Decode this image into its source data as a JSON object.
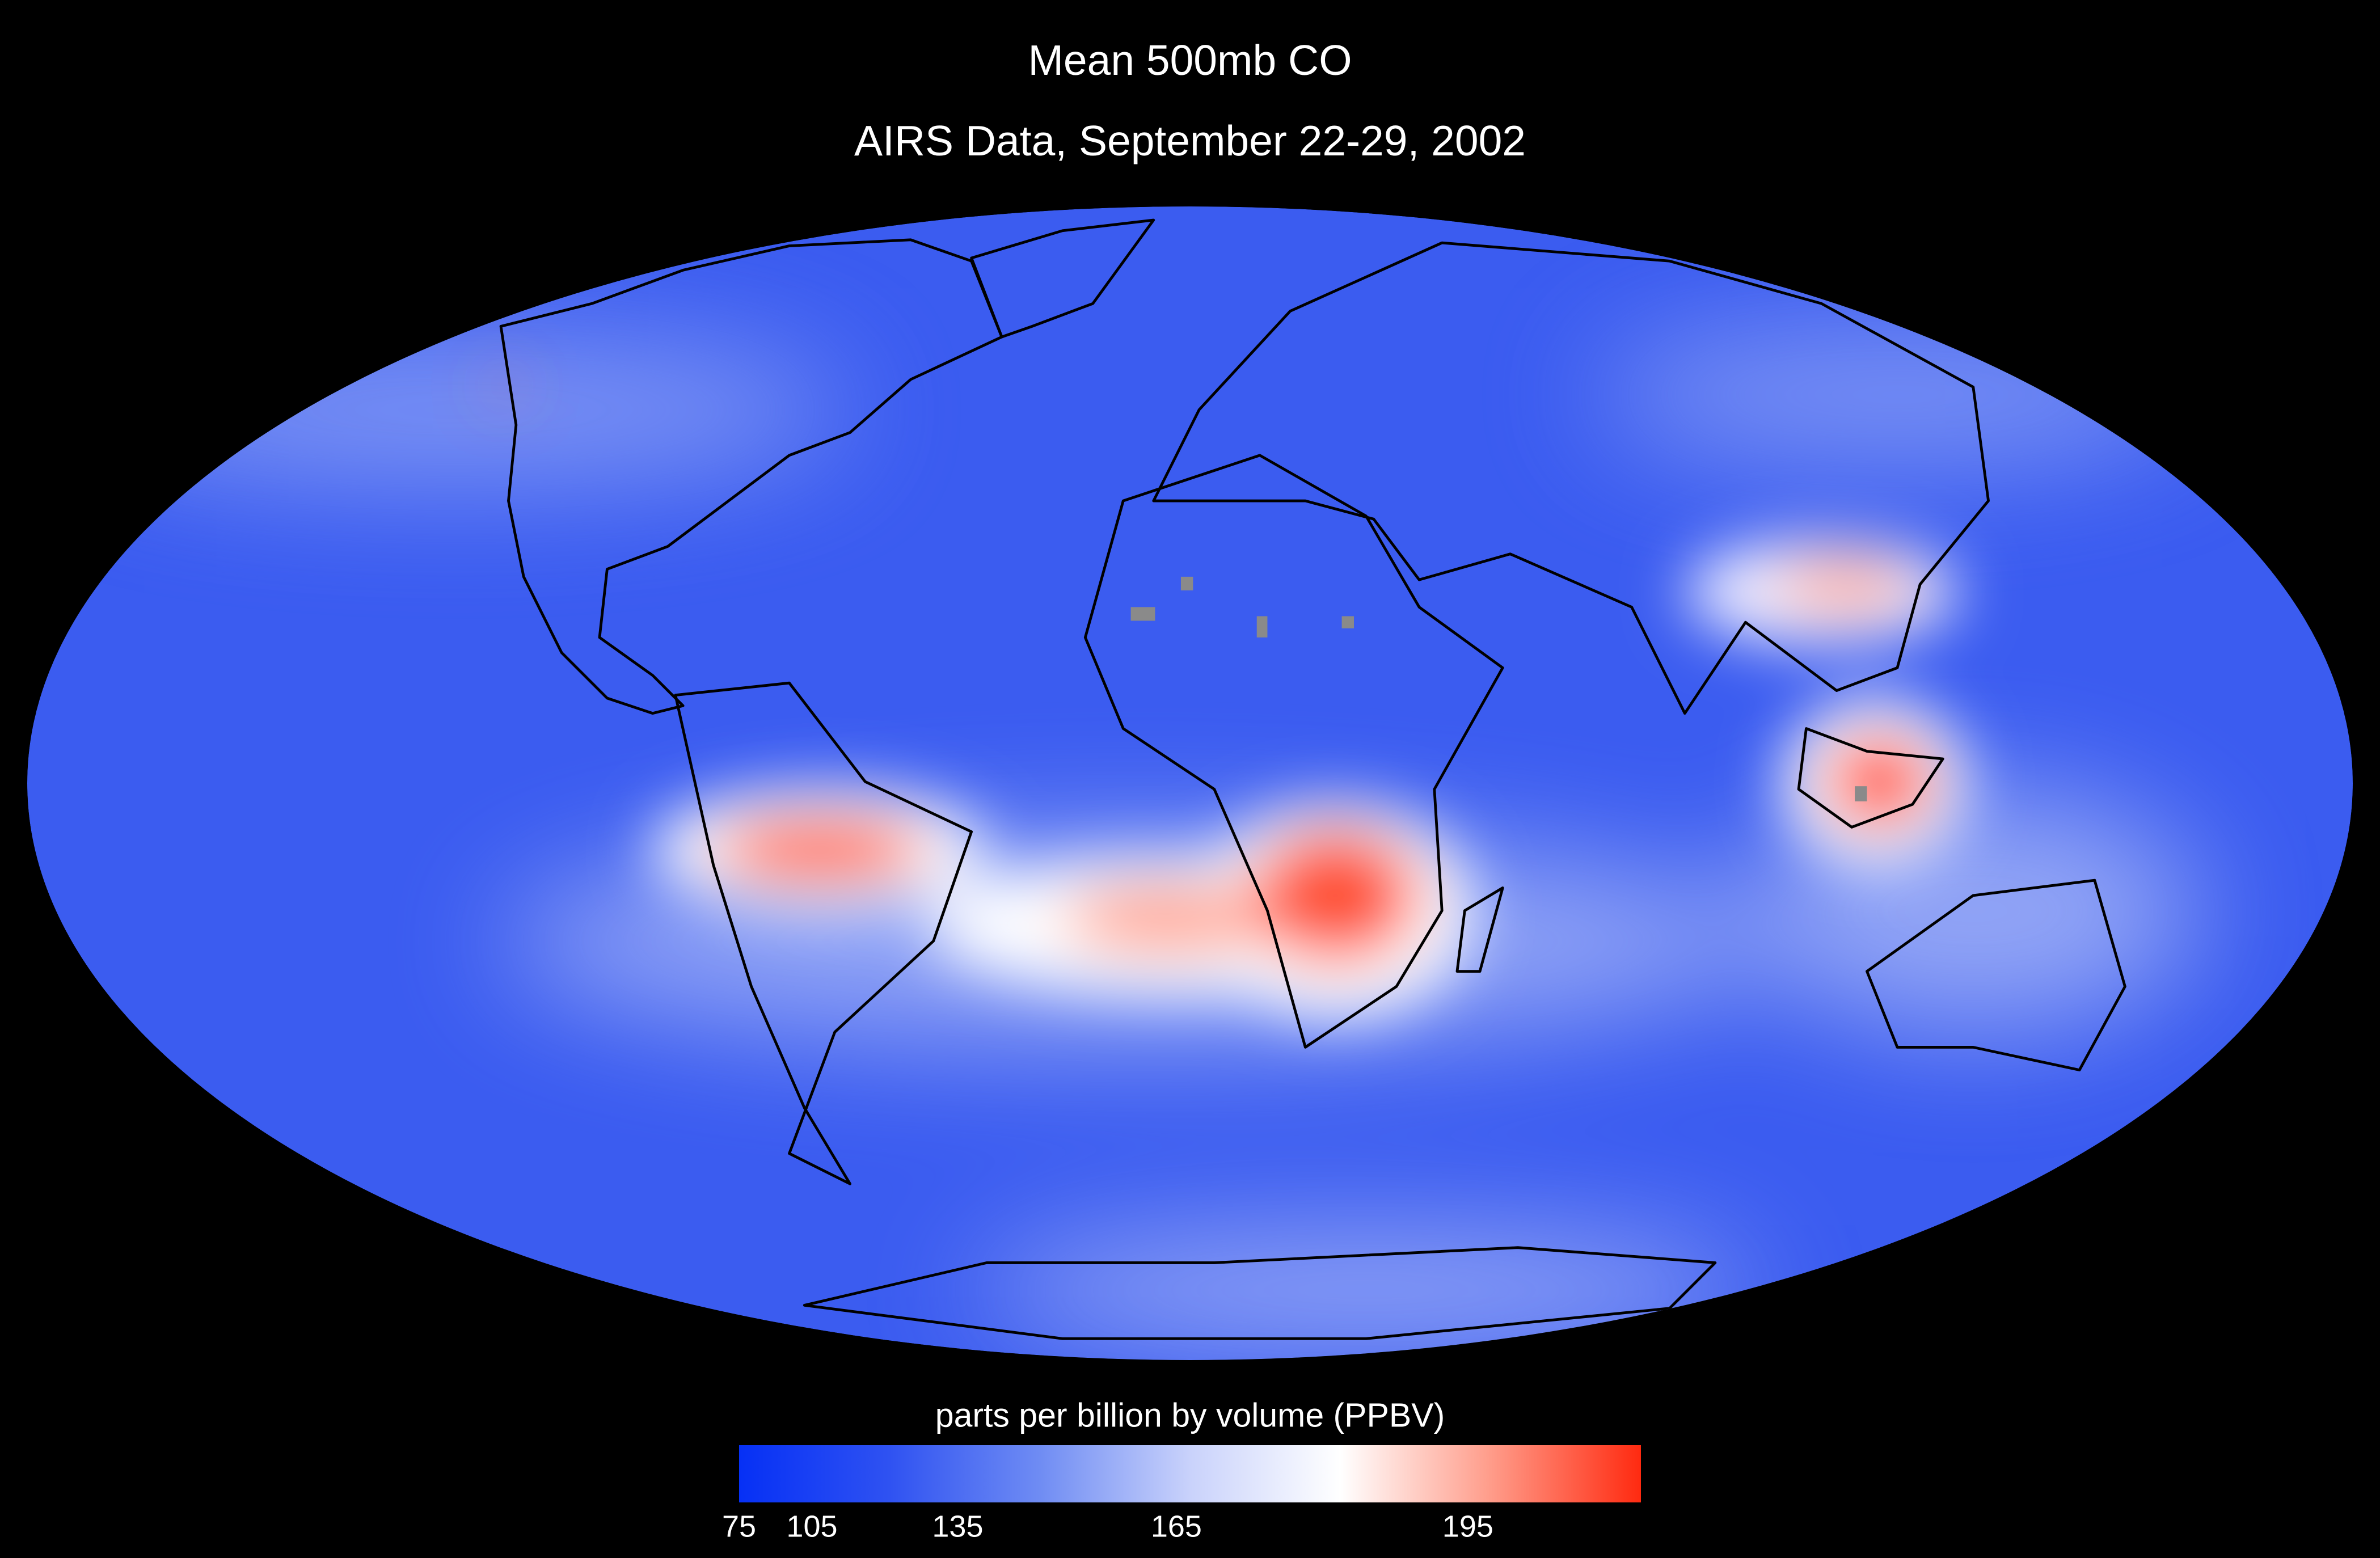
{
  "title": "Mean 500mb CO",
  "subtitle": "AIRS Data, September 22-29, 2002",
  "colorbar": {
    "label": "parts per billion by volume (PPBV)",
    "ticks": [
      75,
      105,
      135,
      165,
      195
    ],
    "clim": [
      75,
      210
    ],
    "colormap": [
      "#0630f5",
      "#2f52f2",
      "#6f8cf3",
      "#c9d2fb",
      "#ffffff",
      "#ff9c8a",
      "#ff2a10"
    ]
  }
}
